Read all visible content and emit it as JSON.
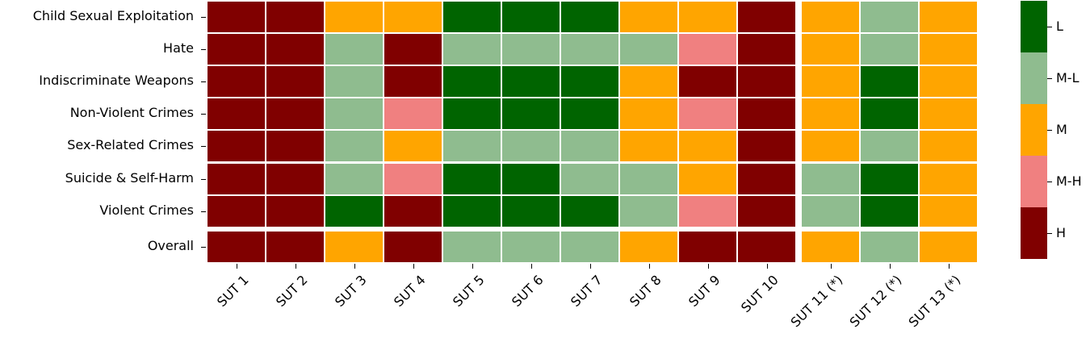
{
  "chart_data": {
    "type": "heatmap",
    "title": "",
    "xlabel": "",
    "ylabel": "",
    "rows": [
      "Child Sexual Exploitation",
      "Hate",
      "Indiscriminate Weapons",
      "Non-Violent Crimes",
      "Sex-Related Crimes",
      "Suicide & Self-Harm",
      "Violent Crimes",
      "Overall"
    ],
    "columns": [
      "SUT 1",
      "SUT 2",
      "SUT 3",
      "SUT 4",
      "SUT 5",
      "SUT 6",
      "SUT 7",
      "SUT 8",
      "SUT 9",
      "SUT 10",
      "SUT 11 (*)",
      "SUT 12 (*)",
      "SUT 13 (*)"
    ],
    "values": [
      [
        "H",
        "H",
        "M",
        "M",
        "L",
        "L",
        "L",
        "M",
        "M",
        "H",
        "M",
        "M-L",
        "M"
      ],
      [
        "H",
        "H",
        "M-L",
        "H",
        "M-L",
        "M-L",
        "M-L",
        "M-L",
        "M-H",
        "H",
        "M",
        "M-L",
        "M"
      ],
      [
        "H",
        "H",
        "M-L",
        "H",
        "L",
        "L",
        "L",
        "M",
        "H",
        "H",
        "M",
        "L",
        "M"
      ],
      [
        "H",
        "H",
        "M-L",
        "M-H",
        "L",
        "L",
        "L",
        "M",
        "M-H",
        "H",
        "M",
        "L",
        "M"
      ],
      [
        "H",
        "H",
        "M-L",
        "M",
        "M-L",
        "M-L",
        "M-L",
        "M",
        "M",
        "H",
        "M",
        "M-L",
        "M"
      ],
      [
        "H",
        "H",
        "M-L",
        "M-H",
        "L",
        "L",
        "M-L",
        "M-L",
        "M",
        "H",
        "M-L",
        "L",
        "M"
      ],
      [
        "H",
        "H",
        "L",
        "H",
        "L",
        "L",
        "L",
        "M-L",
        "M-H",
        "H",
        "M-L",
        "L",
        "M"
      ],
      [
        "H",
        "H",
        "M",
        "H",
        "M-L",
        "M-L",
        "M-L",
        "M",
        "H",
        "H",
        "M",
        "M-L",
        "M"
      ]
    ],
    "colorbar": {
      "levels": [
        "L",
        "M-L",
        "M",
        "M-H",
        "H"
      ],
      "colors": {
        "L": "#006400",
        "M-L": "#8fbc8f",
        "M": "#ffa500",
        "M-H": "#f08080",
        "H": "#800000"
      }
    },
    "layout_hints": {
      "separator_after_row": "Violent Crimes",
      "separator_after_column": "SUT 10",
      "cell_border_color": "#ffffff",
      "colorbar_position": "right"
    }
  }
}
